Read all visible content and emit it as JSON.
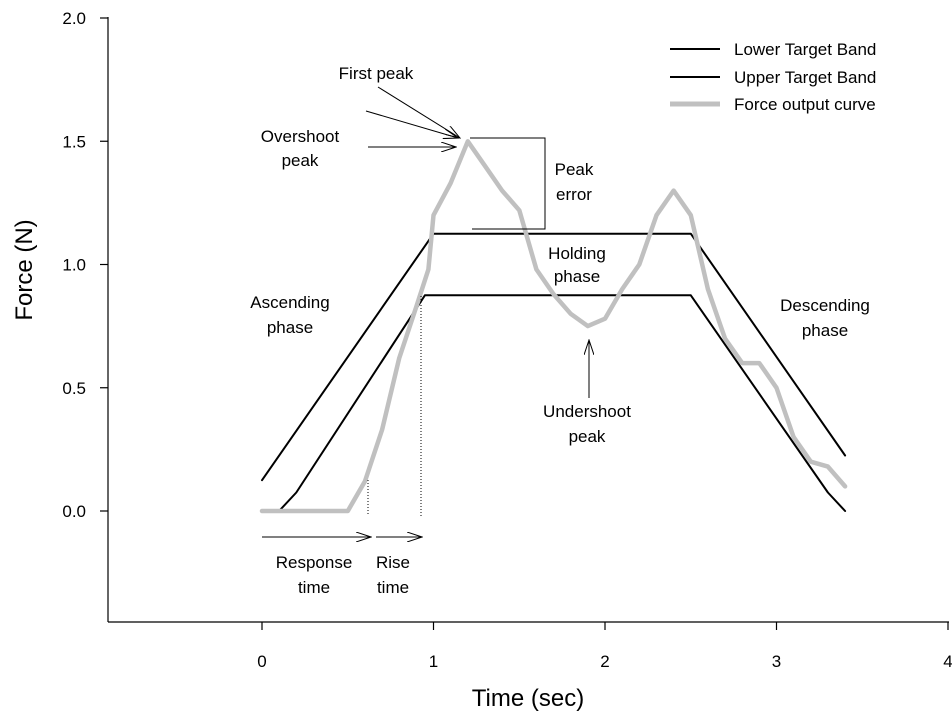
{
  "chart_data": {
    "type": "line",
    "xlabel": "Time (sec)",
    "ylabel": "Force (N)",
    "xlim": [
      -0.9,
      4.0
    ],
    "ylim": [
      -0.45,
      2.0
    ],
    "x_ticks": [
      0,
      1,
      2,
      3,
      4
    ],
    "x_tick_labels": [
      "0",
      "1",
      "2",
      "3",
      "4"
    ],
    "y_ticks": [
      0.0,
      0.5,
      1.0,
      1.5,
      2.0
    ],
    "y_tick_labels": [
      "0.0",
      "0.5",
      "1.0",
      "1.5",
      "2.0"
    ],
    "grid": false,
    "legend_position": "top-right",
    "series": [
      {
        "name": "Lower Target Band",
        "color": "#000000",
        "points": [
          [
            0.0,
            0.125
          ],
          [
            1.0,
            1.125
          ],
          [
            2.5,
            1.125
          ],
          [
            3.4,
            0.225
          ]
        ]
      },
      {
        "name": "Upper Target Band",
        "color": "#000000",
        "points": [
          [
            0.1,
            0.0
          ],
          [
            0.2,
            0.075
          ],
          [
            0.95,
            0.875
          ],
          [
            2.5,
            0.875
          ],
          [
            3.3,
            0.075
          ],
          [
            3.4,
            0.0
          ]
        ]
      },
      {
        "name": "Force output curve",
        "color": "#c0c0c0",
        "points": [
          [
            0.0,
            0.0
          ],
          [
            0.5,
            0.0
          ],
          [
            0.6,
            0.12
          ],
          [
            0.7,
            0.33
          ],
          [
            0.8,
            0.62
          ],
          [
            0.9,
            0.83
          ],
          [
            0.97,
            0.98
          ],
          [
            1.0,
            1.2
          ],
          [
            1.1,
            1.33
          ],
          [
            1.2,
            1.5
          ],
          [
            1.3,
            1.4
          ],
          [
            1.4,
            1.3
          ],
          [
            1.5,
            1.22
          ],
          [
            1.6,
            0.98
          ],
          [
            1.7,
            0.88
          ],
          [
            1.8,
            0.8
          ],
          [
            1.9,
            0.75
          ],
          [
            2.0,
            0.78
          ],
          [
            2.1,
            0.9
          ],
          [
            2.2,
            1.0
          ],
          [
            2.3,
            1.2
          ],
          [
            2.4,
            1.3
          ],
          [
            2.5,
            1.2
          ],
          [
            2.6,
            0.9
          ],
          [
            2.7,
            0.7
          ],
          [
            2.8,
            0.6
          ],
          [
            2.9,
            0.6
          ],
          [
            3.0,
            0.5
          ],
          [
            3.1,
            0.3
          ],
          [
            3.2,
            0.2
          ],
          [
            3.3,
            0.18
          ],
          [
            3.4,
            0.1
          ]
        ]
      }
    ],
    "annotations": {
      "first_peak": "First peak",
      "overshoot_l1": "Overshoot",
      "overshoot_l2": "peak",
      "peak_error_l1": "Peak",
      "peak_error_l2": "error",
      "holding_l1": "Holding",
      "holding_l2": "phase",
      "ascending_l1": "Ascending",
      "ascending_l2": "phase",
      "descending_l1": "Descending",
      "descending_l2": "phase",
      "undershoot_l1": "Undershoot",
      "undershoot_l2": "peak",
      "response_l1": "Response",
      "response_l2": "time",
      "rise_l1": "Rise",
      "rise_l2": "time"
    }
  }
}
